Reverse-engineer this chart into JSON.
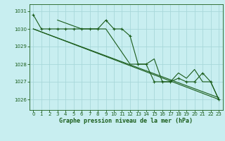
{
  "title": "Graphe pression niveau de la mer (hPa)",
  "background_color": "#c8eef0",
  "grid_color": "#a8d8da",
  "line_color": "#1a5c1a",
  "xlim": [
    -0.5,
    23.5
  ],
  "ylim": [
    1025.4,
    1031.4
  ],
  "yticks": [
    1026,
    1027,
    1028,
    1029,
    1030,
    1031
  ],
  "xticks": [
    0,
    1,
    2,
    3,
    4,
    5,
    6,
    7,
    8,
    9,
    10,
    11,
    12,
    13,
    14,
    15,
    16,
    17,
    18,
    19,
    20,
    21,
    22,
    23
  ],
  "series": [
    {
      "x": [
        0,
        1,
        2,
        3,
        4,
        5,
        6,
        7,
        8,
        9,
        10,
        11,
        12,
        13,
        14,
        15,
        16,
        17,
        18,
        19,
        20,
        21,
        22,
        23
      ],
      "y": [
        1030.8,
        1030.0,
        1030.0,
        1030.0,
        1030.0,
        1030.0,
        1030.0,
        1030.0,
        1030.0,
        1030.5,
        1030.0,
        1030.0,
        1029.6,
        1028.0,
        1028.0,
        1027.0,
        1027.0,
        1027.0,
        1027.2,
        1027.0,
        1027.0,
        1027.5,
        1027.0,
        1026.0
      ],
      "marker": "+"
    },
    {
      "x": [
        0,
        23
      ],
      "y": [
        1030.0,
        1026.0
      ],
      "marker": null
    },
    {
      "x": [
        0,
        23
      ],
      "y": [
        1030.0,
        1026.1
      ],
      "marker": null
    },
    {
      "x": [
        3,
        6,
        9,
        12,
        13,
        14,
        15,
        16,
        17,
        18,
        19,
        20,
        21,
        22,
        23
      ],
      "y": [
        1030.5,
        1030.0,
        1030.0,
        1028.0,
        1028.0,
        1028.0,
        1028.3,
        1027.0,
        1027.0,
        1027.5,
        1027.2,
        1027.7,
        1027.0,
        1027.0,
        1026.0
      ],
      "marker": null
    }
  ]
}
